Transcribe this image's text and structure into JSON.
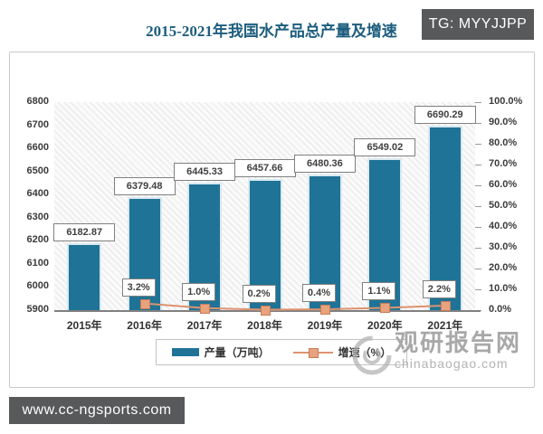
{
  "page": {
    "top_badge": "TG: MYYJJPP",
    "bottom_badge": "www.cc-ngsports.com"
  },
  "watermark": {
    "name": "观研报告网",
    "domain": "chinabaogao.com"
  },
  "chart_data": {
    "type": "bar",
    "combo": "bar+line",
    "title": "2015-2021年我国水产品总产量及增速",
    "categories": [
      "2015年",
      "2016年",
      "2017年",
      "2018年",
      "2019年",
      "2020年",
      "2021年"
    ],
    "series": [
      {
        "name": "产量（万吨）",
        "type": "bar",
        "axis": "left",
        "color": "#1f7396",
        "values": [
          6182.87,
          6379.48,
          6445.33,
          6457.66,
          6480.36,
          6549.02,
          6690.29
        ],
        "labels": [
          "6182.87",
          "6379.48",
          "6445.33",
          "6457.66",
          "6480.36",
          "6549.02",
          "6690.29"
        ]
      },
      {
        "name": "增速（%）",
        "type": "line",
        "axis": "right",
        "color": "#dd9270",
        "marker_fill": "#e9a27e",
        "values": [
          null,
          3.2,
          1.0,
          0.2,
          0.4,
          1.1,
          2.2
        ],
        "labels": [
          null,
          "3.2%",
          "1.0%",
          "0.2%",
          "0.4%",
          "1.1%",
          "2.2%"
        ]
      }
    ],
    "left_axis": {
      "min": 5900,
      "max": 6800,
      "step": 100
    },
    "right_axis": {
      "min": 0,
      "max": 100,
      "step": 10,
      "suffix": "%",
      "decimals": 1
    },
    "grid": false,
    "plot_background": "diagonal-hatch",
    "legend_position": "bottom"
  }
}
